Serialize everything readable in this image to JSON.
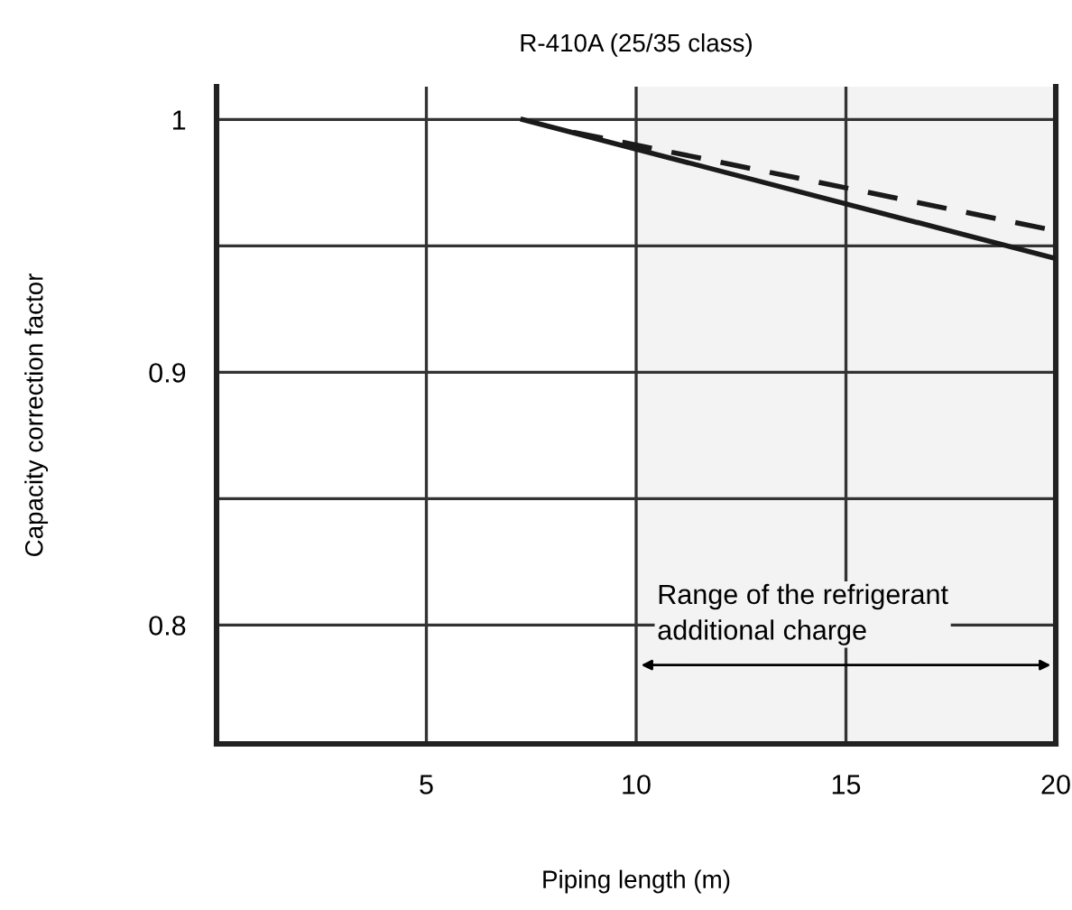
{
  "chart_data": {
    "type": "line",
    "title": "R-410A (25/35 class)",
    "xlabel": "Piping length (m)",
    "ylabel": "Capacity correction factor",
    "xlim": [
      0,
      20
    ],
    "xticks": [
      {
        "value": 0,
        "label": null
      },
      5,
      10,
      15,
      20
    ],
    "ylim": [
      0.753,
      1.013
    ],
    "yticks": [
      0.8,
      {
        "value": 0.85,
        "label": null
      },
      0.9,
      {
        "value": 0.95,
        "label": null
      },
      1
    ],
    "grid": true,
    "line_style": "solid",
    "series": [
      {
        "color": "#1a1a1a",
        "x": [
          7.3,
          20
        ],
        "values": [
          1.0,
          0.945
        ]
      },
      {
        "color": "#1a1a1a",
        "line_style": "dashed",
        "x": [
          8.5,
          20
        ],
        "values": [
          0.995,
          0.956
        ]
      }
    ],
    "bands": [
      {
        "axis": "x",
        "from": 10,
        "to": 20,
        "label": "Range of the refrigerant\nadditional charge",
        "color": "#f3f3f3"
      }
    ]
  }
}
